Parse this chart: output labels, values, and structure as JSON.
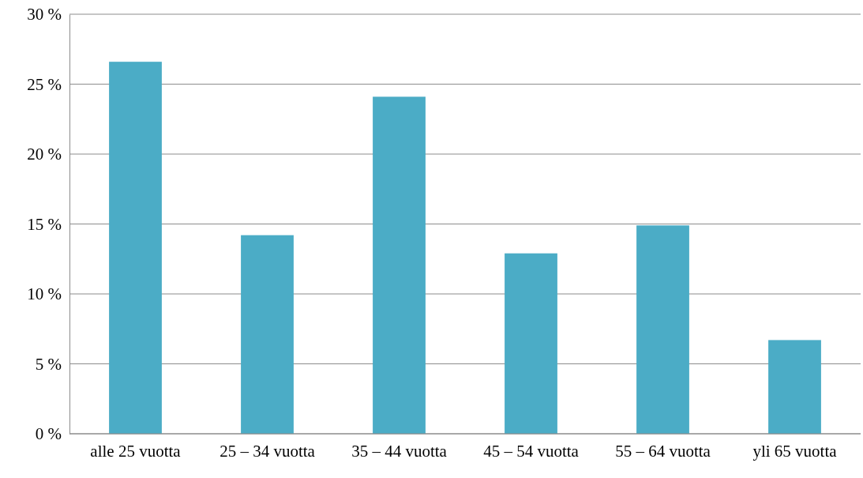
{
  "chart_data": {
    "type": "bar",
    "categories": [
      "alle 25 vuotta",
      "25 – 34 vuotta",
      "35 – 44 vuotta",
      "45 – 54 vuotta",
      "55 – 64 vuotta",
      "yli 65 vuotta"
    ],
    "values": [
      26.6,
      14.2,
      24.1,
      12.9,
      14.9,
      6.7
    ],
    "color": "#4bacc6",
    "ylim": [
      0,
      30
    ],
    "yticks": [
      {
        "value": 0,
        "label": "0 %"
      },
      {
        "value": 5,
        "label": "5 %"
      },
      {
        "value": 10,
        "label": "10 %"
      },
      {
        "value": 15,
        "label": "15 %"
      },
      {
        "value": 20,
        "label": "20 %"
      },
      {
        "value": 25,
        "label": "25 %"
      },
      {
        "value": 30,
        "label": "30 %"
      }
    ],
    "grid": "y"
  }
}
